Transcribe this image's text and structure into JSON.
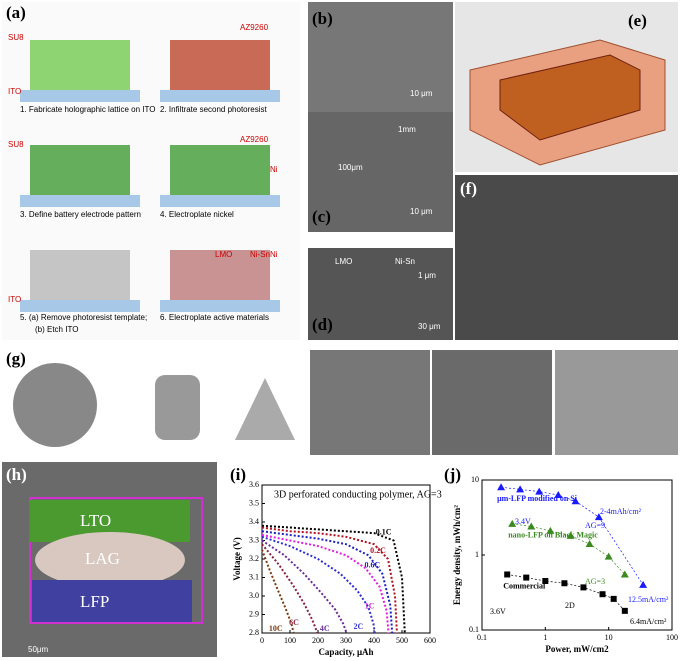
{
  "panels": {
    "a": {
      "label": "(a)",
      "annotations": [
        "SU8",
        "ITO",
        "AZ9260",
        "SU8",
        "AZ9260",
        "Ni",
        "Ni",
        "ITO",
        "LMO",
        "Ni-Sn"
      ],
      "steps": [
        "1. Fabricate holographic lattice on ITO",
        "2. Infiltrate second photoresist",
        "3. Define battery electrode pattern",
        "4. Electroplate nickel",
        "5. (a) Remove photoresist template;",
        "(b) Etch ITO",
        "6. Electroplate active materials"
      ]
    },
    "b": {
      "label": "(b)",
      "scale": "10 μm"
    },
    "c": {
      "label": "(c)",
      "scale": "10 μm",
      "insets": [
        "100μm",
        "1mm"
      ]
    },
    "d": {
      "label": "(d)",
      "scale": "30 μm",
      "insets": [
        "LMO",
        "Ni-Sn"
      ],
      "inset_scale": "1 μm"
    },
    "e": {
      "label": "(e)"
    },
    "f": {
      "label": "(f)"
    },
    "g": {
      "label": "(g)"
    },
    "h": {
      "label": "(h)",
      "regions": [
        "LTO",
        "LAG",
        "LFP"
      ],
      "scale": "50μm"
    },
    "i": {
      "label": "(i)"
    },
    "j": {
      "label": "(j)"
    }
  },
  "charts": [
    {
      "type": "line",
      "title": "3D perforated conducting polymer, AG=3",
      "xlabel": "Capacity, μAh",
      "ylabel": "Voltage (V)",
      "xlim": [
        0,
        600
      ],
      "xticks": [
        0,
        100,
        200,
        300,
        400,
        500,
        600
      ],
      "ylim": [
        2.8,
        3.6
      ],
      "yticks": [
        2.8,
        2.9,
        {
          "value": 3,
          "label": "3.0"
        },
        3.1,
        3.2,
        3.3,
        3.4,
        3.5,
        3.6
      ],
      "series": [
        {
          "name": "0.1C",
          "color": "#000000",
          "x": [
            0,
            100,
            200,
            300,
            400,
            470,
            500,
            510
          ],
          "values": [
            3.38,
            3.37,
            3.36,
            3.35,
            3.34,
            3.3,
            3.1,
            2.8
          ]
        },
        {
          "name": "0.2C",
          "color": "#b01020",
          "x": [
            0,
            100,
            200,
            300,
            400,
            450,
            475,
            482
          ],
          "values": [
            3.37,
            3.35,
            3.34,
            3.32,
            3.28,
            3.2,
            3.0,
            2.8
          ]
        },
        {
          "name": "0.6C",
          "color": "#2020c0",
          "x": [
            0,
            100,
            200,
            300,
            380,
            430,
            458,
            465
          ],
          "values": [
            3.35,
            3.33,
            3.31,
            3.28,
            3.22,
            3.12,
            2.95,
            2.8
          ]
        },
        {
          "name": "1C",
          "color": "#e020e0",
          "x": [
            0,
            100,
            200,
            300,
            370,
            420,
            445,
            452
          ],
          "values": [
            3.33,
            3.3,
            3.27,
            3.22,
            3.15,
            3.05,
            2.92,
            2.8
          ]
        },
        {
          "name": "2C",
          "color": "#3030d0",
          "x": [
            0,
            100,
            200,
            280,
            340,
            380,
            398,
            403
          ],
          "values": [
            3.32,
            3.27,
            3.2,
            3.12,
            3.03,
            2.94,
            2.85,
            2.8
          ]
        },
        {
          "name": "4C",
          "color": "#6a2a9a",
          "x": [
            0,
            80,
            150,
            210,
            260,
            290,
            302
          ],
          "values": [
            3.3,
            3.22,
            3.12,
            3.02,
            2.93,
            2.85,
            2.8
          ]
        },
        {
          "name": "6C",
          "color": "#8a2040",
          "x": [
            0,
            60,
            110,
            150,
            180,
            198
          ],
          "values": [
            3.28,
            3.17,
            3.06,
            2.96,
            2.87,
            2.8
          ]
        },
        {
          "name": "10C",
          "color": "#7a3a10",
          "x": [
            0,
            30,
            60,
            85,
            105,
            113
          ],
          "values": [
            3.25,
            3.13,
            3.02,
            2.93,
            2.85,
            2.8
          ]
        }
      ]
    },
    {
      "type": "scatter",
      "ylabel": "Energy density, mWh/cm²",
      "xlabel": "Power, mW/cm2",
      "xscale": "log",
      "yscale": "log",
      "xlim": [
        0.1,
        100
      ],
      "xticks": [
        0.1,
        1,
        10,
        100
      ],
      "ylim": [
        0.1,
        10
      ],
      "yticks": [
        0.1,
        1,
        10
      ],
      "annotations": [
        "2-4mAh/cm²",
        "AG=9",
        "3.4V",
        "AG=3",
        "12.5mA/cm²",
        "3.6V",
        "2D",
        "6.4mA/cm²"
      ],
      "series": [
        {
          "name": "μm-LFP modified on Si",
          "color": "#1a1aff",
          "marker": "triangle",
          "x": [
            0.2,
            0.4,
            0.8,
            1.6,
            3,
            7,
            35
          ],
          "values": [
            8,
            7.5,
            7,
            6.3,
            5.2,
            3.2,
            0.4
          ]
        },
        {
          "name": "nano-LFP on Black Magic",
          "color": "#3a8a20",
          "marker": "triangle",
          "x": [
            0.3,
            0.6,
            1.2,
            2.5,
            5,
            10,
            18
          ],
          "values": [
            2.6,
            2.4,
            2.1,
            1.8,
            1.4,
            0.95,
            0.55
          ]
        },
        {
          "name": "Commercial",
          "color": "#000000",
          "marker": "square",
          "x": [
            0.25,
            0.5,
            1,
            2,
            4,
            8,
            12,
            18
          ],
          "values": [
            0.55,
            0.5,
            0.45,
            0.42,
            0.37,
            0.3,
            0.26,
            0.18
          ]
        }
      ]
    }
  ]
}
